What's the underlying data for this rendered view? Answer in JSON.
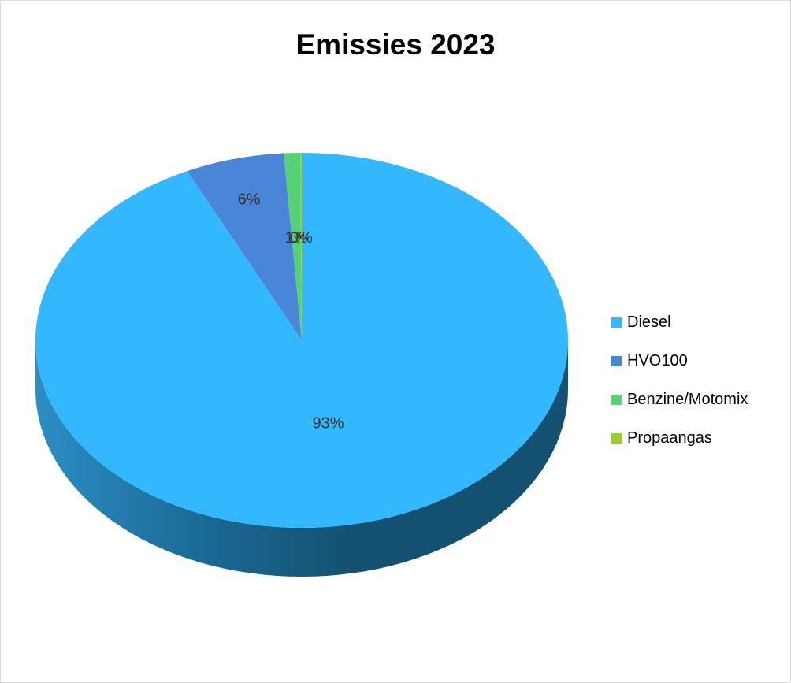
{
  "chart_data": {
    "type": "pie",
    "title": "Emissies 2023",
    "categories": [
      "Diesel",
      "HVO100",
      "Benzine/Motomix",
      "Propaangas"
    ],
    "values": [
      93,
      6,
      1,
      0
    ],
    "data_labels": [
      "93%",
      "6%",
      "1%",
      "0%"
    ],
    "colors": [
      "#33b8ff",
      "#4a86d8",
      "#57d07a",
      "#9acd32"
    ],
    "side_color": "#1a5e82",
    "legend_position": "right",
    "style": "3d"
  }
}
